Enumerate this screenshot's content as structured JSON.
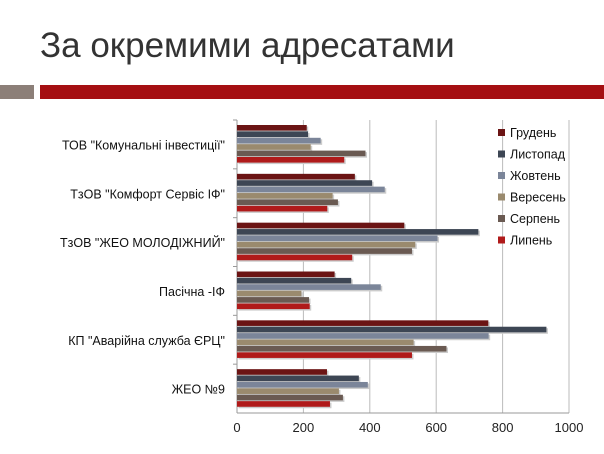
{
  "slide": {
    "title": "За окремими адресатами"
  },
  "chart_data": {
    "type": "bar",
    "orientation": "horizontal",
    "title": "",
    "categories": [
      "ТОВ \"Комунальні інвестиції\"",
      "ТзОВ \"Комфорт Сервіс ІФ\"",
      "ТзОВ \"ЖЕО МОЛОДІЖНИЙ\"",
      "Пасічна -ІФ",
      "КП \"Аварійна служба ЄРЦ\"",
      "ЖЕО №9"
    ],
    "series": [
      {
        "name": "Грудень",
        "color": "#6b1414",
        "values": [
          210,
          355,
          504,
          294,
          757,
          271
        ]
      },
      {
        "name": "Листопад",
        "color": "#3d4654",
        "values": [
          214,
          407,
          727,
          344,
          932,
          367
        ]
      },
      {
        "name": "Жовтень",
        "color": "#7b8599",
        "values": [
          252,
          445,
          604,
          433,
          758,
          394
        ]
      },
      {
        "name": "Вересень",
        "color": "#9a8a6e",
        "values": [
          222,
          288,
          537,
          194,
          532,
          307
        ]
      },
      {
        "name": "Серпень",
        "color": "#6a5a52",
        "values": [
          387,
          304,
          527,
          217,
          631,
          319
        ]
      },
      {
        "name": "Липень",
        "color": "#b01a1a",
        "values": [
          323,
          272,
          347,
          219,
          527,
          280
        ]
      }
    ],
    "xlim": [
      0,
      1000
    ],
    "xticks": [
      "0",
      "200",
      "400",
      "600",
      "800",
      "1000"
    ],
    "grid": true,
    "legend": "right"
  }
}
